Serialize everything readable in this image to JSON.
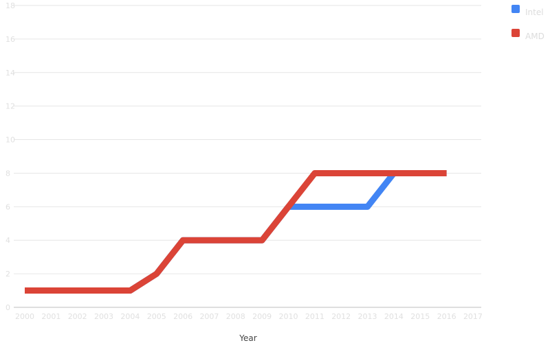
{
  "chart_data": {
    "type": "line",
    "title": "",
    "xlabel": "Year",
    "ylabel": "",
    "x": [
      2000,
      2001,
      2002,
      2003,
      2004,
      2005,
      2006,
      2007,
      2008,
      2009,
      2010,
      2011,
      2012,
      2013,
      2014,
      2015,
      2016
    ],
    "x_ticks": [
      2000,
      2001,
      2002,
      2003,
      2004,
      2005,
      2006,
      2007,
      2008,
      2009,
      2010,
      2011,
      2012,
      2013,
      2014,
      2015,
      2016,
      2017
    ],
    "xlim": [
      2000,
      2017
    ],
    "ylim": [
      0,
      18
    ],
    "y_ticks": [
      0,
      2,
      4,
      6,
      8,
      10,
      12,
      14,
      16,
      18
    ],
    "grid": "horizontal",
    "legend_position": "top-right",
    "series": [
      {
        "name": "Intel",
        "color": "#4285f4",
        "values": [
          1,
          1,
          1,
          1,
          1,
          2,
          4,
          4,
          4,
          4,
          6,
          6,
          6,
          6,
          8,
          8,
          8
        ]
      },
      {
        "name": "AMD",
        "color": "#db4437",
        "values": [
          1,
          1,
          1,
          1,
          1,
          2,
          4,
          4,
          4,
          4,
          6,
          8,
          8,
          8,
          8,
          8,
          8
        ]
      }
    ]
  }
}
